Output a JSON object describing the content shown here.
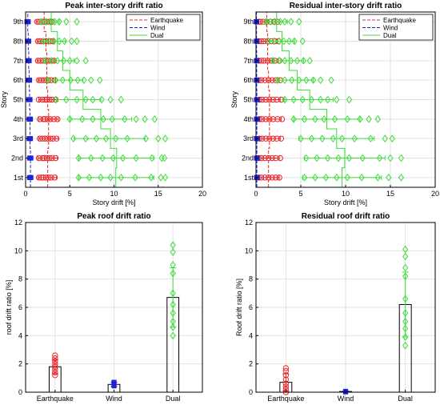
{
  "figure": {
    "colors": {
      "earthquake": "#e8282b",
      "wind": "#1f25d6",
      "dual": "#3ddc3a",
      "bar_edge": "#000000",
      "grid": "#e2e2e2"
    }
  },
  "chart_data": [
    {
      "type": "scatter",
      "title": "Peak inter-story drift ratio",
      "xlabel": "Story drift [%]",
      "ylabel": "Story",
      "xlim": [
        0,
        20
      ],
      "xticks": [
        0,
        5,
        10,
        15,
        20
      ],
      "categories": [
        "1st",
        "2nd",
        "3rd",
        "4th",
        "5th",
        "6th",
        "7th",
        "8th",
        "9th"
      ],
      "grid": true,
      "legend": {
        "position": "top-right",
        "entries": [
          "Earthquake",
          "Wind",
          "Dual"
        ]
      },
      "series": [
        {
          "name": "Earthquake",
          "color": "#e8282b",
          "marker": "circle",
          "line": "dashed",
          "mean": [
            2.5,
            2.5,
            2.6,
            2.6,
            2.5,
            2.4,
            2.4,
            2.3,
            2.1
          ],
          "err_low": [
            1.4,
            1.4,
            1.5,
            1.5,
            1.5,
            1.4,
            1.3,
            1.3,
            1.2
          ],
          "err_high": [
            3.5,
            3.6,
            3.7,
            3.7,
            3.6,
            3.4,
            3.3,
            3.2,
            3.0
          ],
          "points": [
            [
              1.5,
              1.8,
              2.0,
              2.3,
              2.6,
              2.9,
              3.3
            ],
            [
              1.5,
              1.9,
              2.1,
              2.4,
              2.7,
              3.0,
              3.4
            ],
            [
              1.6,
              1.9,
              2.2,
              2.5,
              2.8,
              3.1,
              3.5
            ],
            [
              1.6,
              2.0,
              2.2,
              2.5,
              2.8,
              3.2,
              3.6
            ],
            [
              1.5,
              1.9,
              2.2,
              2.4,
              2.7,
              3.0,
              3.4
            ],
            [
              1.5,
              1.8,
              2.1,
              2.4,
              2.6,
              2.9,
              3.3
            ],
            [
              1.4,
              1.7,
              2.0,
              2.3,
              2.6,
              2.9,
              3.2
            ],
            [
              1.4,
              1.7,
              2.0,
              2.3,
              2.5,
              2.8,
              3.1
            ],
            [
              1.3,
              1.6,
              1.9,
              2.1,
              2.4,
              2.7,
              3.0
            ]
          ]
        },
        {
          "name": "Wind",
          "color": "#1f25d6",
          "marker": "square",
          "line": "dashed",
          "mean": [
            0.55,
            0.55,
            0.5,
            0.5,
            0.45,
            0.4,
            0.35,
            0.3,
            0.25
          ],
          "points": [
            [
              0.45,
              0.6
            ],
            [
              0.45,
              0.6
            ],
            [
              0.4,
              0.55
            ],
            [
              0.4,
              0.55
            ],
            [
              0.35,
              0.5
            ],
            [
              0.3,
              0.45
            ],
            [
              0.25,
              0.4
            ],
            [
              0.2,
              0.35
            ],
            [
              0.15,
              0.3
            ]
          ]
        },
        {
          "name": "Dual",
          "color": "#3ddc3a",
          "marker": "diamond",
          "line": "solid",
          "mean": [
            10.2,
            10.3,
            9.6,
            8.5,
            6.5,
            5.0,
            4.2,
            3.6,
            2.9
          ],
          "err_low": [
            6.0,
            6.0,
            5.5,
            5.0,
            3.5,
            2.5,
            2.2,
            2.0,
            1.8
          ],
          "err_high": [
            14.5,
            14.5,
            13.5,
            12.0,
            8.5,
            6.5,
            5.5,
            4.5,
            3.8
          ],
          "points": [
            [
              6.0,
              7.2,
              8.5,
              9.6,
              10.8,
              12.4,
              14.2,
              15.3,
              15.8
            ],
            [
              6.0,
              7.4,
              8.7,
              9.9,
              11.0,
              12.5,
              14.3,
              15.4,
              15.7
            ],
            [
              5.4,
              6.8,
              8.0,
              9.1,
              10.2,
              11.5,
              13.6,
              15.0,
              15.8
            ],
            [
              5.0,
              6.4,
              7.6,
              8.8,
              9.8,
              11.2,
              12.5,
              13.5,
              14.6
            ],
            [
              3.4,
              4.6,
              5.8,
              6.8,
              7.6,
              8.6,
              9.6,
              10.8
            ],
            [
              2.5,
              3.4,
              4.2,
              5.1,
              5.9,
              6.6,
              7.4,
              8.4
            ],
            [
              2.2,
              2.9,
              3.6,
              4.3,
              5.0,
              5.8,
              6.8
            ],
            [
              2.0,
              2.6,
              3.2,
              3.8,
              4.4,
              5.2,
              5.8
            ],
            [
              1.8,
              2.3,
              2.8,
              3.3,
              3.8,
              4.6,
              5.8
            ]
          ]
        }
      ]
    },
    {
      "type": "scatter",
      "title": "Residual inter-story drift ratio",
      "xlabel": "Story drift [%]",
      "ylabel": "Story",
      "xlim": [
        0,
        20
      ],
      "xticks": [
        0,
        5,
        10,
        15,
        20
      ],
      "categories": [
        "1st",
        "2nd",
        "3rd",
        "4th",
        "5th",
        "6th",
        "7th",
        "8th",
        "9th"
      ],
      "grid": true,
      "legend": {
        "position": "top-right",
        "entries": [
          "Earthquake",
          "Wind",
          "Dual"
        ]
      },
      "series": [
        {
          "name": "Earthquake",
          "color": "#e8282b",
          "marker": "circle",
          "line": "dashed",
          "mean": [
            1.4,
            1.4,
            1.5,
            1.5,
            1.5,
            1.4,
            1.3,
            1.3,
            1.2
          ],
          "err_low": [
            0.3,
            0.3,
            0.4,
            0.4,
            0.4,
            0.3,
            0.3,
            0.3,
            0.3
          ],
          "err_high": [
            2.6,
            2.6,
            2.7,
            2.8,
            2.7,
            2.6,
            2.5,
            2.4,
            2.3
          ],
          "points": [
            [
              0.3,
              0.6,
              1.0,
              1.4,
              1.8,
              2.2,
              2.6
            ],
            [
              0.3,
              0.6,
              1.0,
              1.4,
              1.8,
              2.2,
              2.7
            ],
            [
              0.4,
              0.7,
              1.1,
              1.5,
              1.9,
              2.3,
              2.8
            ],
            [
              0.4,
              0.7,
              1.1,
              1.5,
              1.9,
              2.4,
              2.9
            ],
            [
              0.4,
              0.7,
              1.1,
              1.5,
              1.9,
              2.3,
              2.8
            ],
            [
              0.3,
              0.6,
              1.0,
              1.4,
              1.8,
              2.2,
              2.7
            ],
            [
              0.3,
              0.6,
              0.9,
              1.3,
              1.7,
              2.1,
              2.6
            ],
            [
              0.3,
              0.6,
              0.9,
              1.3,
              1.7,
              2.1,
              2.5
            ],
            [
              0.3,
              0.5,
              0.8,
              1.2,
              1.6,
              2.0,
              2.4
            ]
          ]
        },
        {
          "name": "Wind",
          "color": "#1f25d6",
          "marker": "square",
          "line": "dashed",
          "mean": [
            0.1,
            0.1,
            0.1,
            0.1,
            0.1,
            0.08,
            0.08,
            0.06,
            0.05
          ],
          "points": [
            [
              0.05,
              0.15
            ],
            [
              0.05,
              0.15
            ],
            [
              0.05,
              0.15
            ],
            [
              0.05,
              0.15
            ],
            [
              0.05,
              0.15
            ],
            [
              0.04,
              0.12
            ],
            [
              0.04,
              0.12
            ],
            [
              0.03,
              0.1
            ],
            [
              0.02,
              0.08
            ]
          ]
        },
        {
          "name": "Dual",
          "color": "#3ddc3a",
          "marker": "diamond",
          "line": "solid",
          "mean": [
            9.6,
            9.9,
            9.0,
            7.9,
            6.0,
            4.6,
            3.7,
            2.9,
            2.3
          ],
          "err_low": [
            5.2,
            5.4,
            4.8,
            4.2,
            3.2,
            2.4,
            1.9,
            1.5,
            1.1
          ],
          "err_high": [
            14.0,
            14.4,
            13.2,
            11.6,
            8.6,
            6.4,
            5.3,
            4.3,
            3.5
          ],
          "points": [
            [
              5.4,
              6.6,
              7.8,
              9.0,
              10.2,
              11.8,
              13.6,
              14.8,
              16.2
            ],
            [
              5.6,
              6.8,
              8.0,
              9.2,
              10.4,
              11.9,
              13.8,
              15.0,
              16.2
            ],
            [
              5.0,
              6.2,
              7.4,
              8.6,
              9.6,
              11.0,
              12.8,
              14.4,
              15.2
            ],
            [
              4.2,
              5.4,
              6.6,
              7.6,
              8.8,
              10.2,
              11.6,
              12.6,
              13.6
            ],
            [
              3.2,
              4.2,
              5.2,
              6.2,
              7.2,
              8.0,
              9.0,
              10.4
            ],
            [
              2.4,
              3.2,
              4.0,
              4.8,
              5.6,
              6.4,
              7.2,
              8.4
            ],
            [
              1.9,
              2.6,
              3.2,
              3.9,
              4.6,
              5.3,
              6.0
            ],
            [
              1.4,
              2.0,
              2.6,
              3.1,
              3.7,
              4.3,
              5.2
            ],
            [
              1.1,
              1.6,
              2.1,
              2.7,
              3.2,
              3.9,
              4.8
            ]
          ]
        }
      ]
    },
    {
      "type": "bar",
      "title": "Peak roof drift ratio",
      "xlabel": "",
      "ylabel": "roof drift ratio [%]",
      "ylim": [
        0,
        12
      ],
      "yticks": [
        0,
        2,
        4,
        6,
        8,
        10,
        12
      ],
      "categories": [
        "Earthquake",
        "Wind",
        "Dual"
      ],
      "grid": true,
      "values": [
        1.8,
        0.55,
        6.7
      ],
      "error_low": [
        1.3,
        0.4,
        4.6
      ],
      "error_high": [
        2.3,
        0.7,
        8.8
      ],
      "points": [
        [
          1.2,
          1.4,
          1.6,
          1.8,
          2.0,
          2.2,
          2.4,
          2.6
        ],
        [
          0.45,
          0.6,
          0.7
        ],
        [
          4.0,
          4.6,
          5.0,
          5.6,
          6.2,
          7.0,
          8.4,
          9.0,
          9.9,
          10.4
        ]
      ],
      "bar_colors": [
        "#e8282b",
        "#1f25d6",
        "#3ddc3a"
      ]
    },
    {
      "type": "bar",
      "title": "Residual roof drift ratio",
      "xlabel": "",
      "ylabel": "Roof drift ratio [%]",
      "ylim": [
        0,
        12
      ],
      "yticks": [
        0,
        2,
        4,
        6,
        8,
        10,
        12
      ],
      "categories": [
        "Earthquake",
        "Wind",
        "Dual"
      ],
      "grid": true,
      "values": [
        0.7,
        0.05,
        6.2
      ],
      "error_low": [
        0.1,
        0.02,
        3.9
      ],
      "error_high": [
        1.3,
        0.08,
        8.5
      ],
      "points": [
        [
          0.0,
          0.2,
          0.4,
          0.6,
          0.9,
          1.2,
          1.5,
          1.7
        ],
        [
          0.02,
          0.06
        ],
        [
          3.3,
          3.9,
          4.5,
          5.0,
          5.6,
          6.6,
          8.2,
          8.8,
          9.6,
          10.1
        ]
      ],
      "bar_colors": [
        "#e8282b",
        "#1f25d6",
        "#3ddc3a"
      ]
    }
  ]
}
